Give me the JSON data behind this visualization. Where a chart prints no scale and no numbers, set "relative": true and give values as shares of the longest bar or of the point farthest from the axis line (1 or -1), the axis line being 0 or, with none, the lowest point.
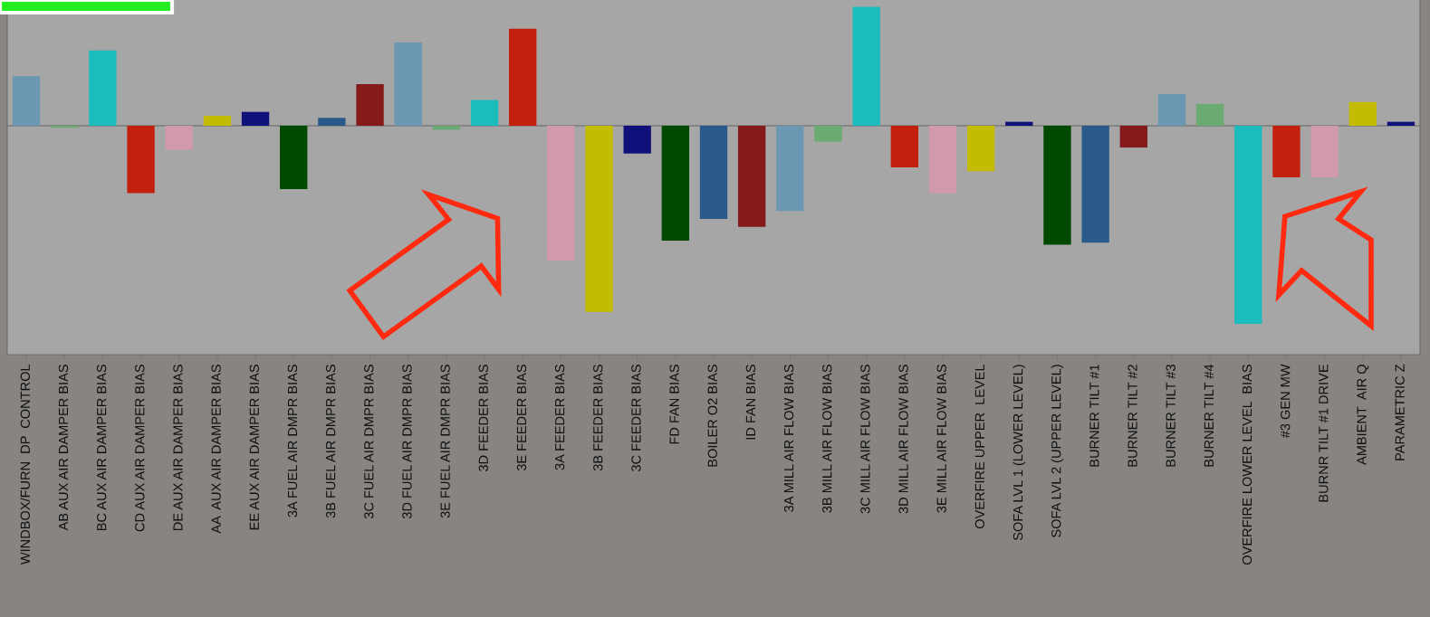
{
  "chart_data": {
    "type": "bar",
    "relative": true,
    "categories": [
      "WINDBOX/FURN  DP  CONTROL",
      "AB AUX AIR DAMPER BIAS",
      "BC AUX AIR DAMPER BIAS",
      "CD AUX AIR DAMPER BIAS",
      "DE AUX AIR DAMPER BIAS",
      "AA  AUX AIR DAMPER BIAS",
      "EE AUX AIR DAMPER BIAS",
      "3A FUEL AIR DMPR BIAS",
      "3B FUEL AIR DMPR BIAS",
      "3C FUEL AIR DMPR BIAS",
      "3D FUEL AIR DMPR BIAS",
      "3E FUEL AIR DMPR BIAS",
      "3D FEEDER BIAS",
      "3E FEEDER BIAS",
      "3A FEEDER BIAS",
      "3B FEEDER BIAS",
      "3C FEEDER BIAS",
      "FD FAN BIAS",
      "BOILER O2 BIAS",
      "ID FAN BIAS",
      "3A MILL AIR FLOW BIAS",
      "3B MILL AIR FLOW BIAS",
      "3C MILL AIR FLOW BIAS",
      "3D MILL AIR FLOW BIAS",
      "3E MILL AIR FLOW BIAS",
      "OVERFIRE UPPER  LEVEL",
      "SOFA LVL 1 (LOWER LEVEL)",
      "SOFA LVL 2 (UPPER LEVEL)",
      "BURNER TILT #1",
      "BURNER TILT #2",
      "BURNER TILT #3",
      "BURNER TILT #4",
      "OVERFIRE LOWER LEVEL  BIAS",
      "#3 GEN MW",
      "BURNR TILT #1 DRIVE",
      "AMBIENT  AIR Q",
      "PARAMETRIC Z"
    ],
    "values": [
      0.25,
      -0.01,
      0.38,
      -0.34,
      -0.12,
      0.05,
      0.07,
      -0.32,
      0.04,
      0.21,
      0.42,
      -0.02,
      0.13,
      0.49,
      -0.68,
      -0.94,
      -0.14,
      -0.58,
      -0.47,
      -0.51,
      -0.43,
      -0.08,
      0.6,
      -0.21,
      -0.34,
      -0.23,
      0.02,
      -0.6,
      -0.59,
      -0.11,
      0.16,
      0.11,
      -1,
      -0.26,
      -0.26,
      0.12,
      0.02
    ],
    "colors": [
      "#6b97b3",
      "#6aab72",
      "#1cbcbc",
      "#c4200e",
      "#d09aaa",
      "#c4bc00",
      "#10107a",
      "#004a00",
      "#2a5a8a",
      "#841a1a",
      "#6b97b3",
      "#6aab72",
      "#1cbcbc",
      "#c4200e",
      "#d09aaa",
      "#c4bc00",
      "#10107a",
      "#004a00",
      "#2a5a8a",
      "#841a1a",
      "#6b97b3",
      "#6aab72",
      "#1cbcbc",
      "#c4200e",
      "#d09aaa",
      "#c4bc00",
      "#10107a",
      "#004a00",
      "#2a5a8a",
      "#841a1a",
      "#6b97b3",
      "#6aab72",
      "#1cbcbc",
      "#c4200e",
      "#d09aaa",
      "#c4bc00",
      "#10107a"
    ],
    "grid": false,
    "legend": false
  }
}
